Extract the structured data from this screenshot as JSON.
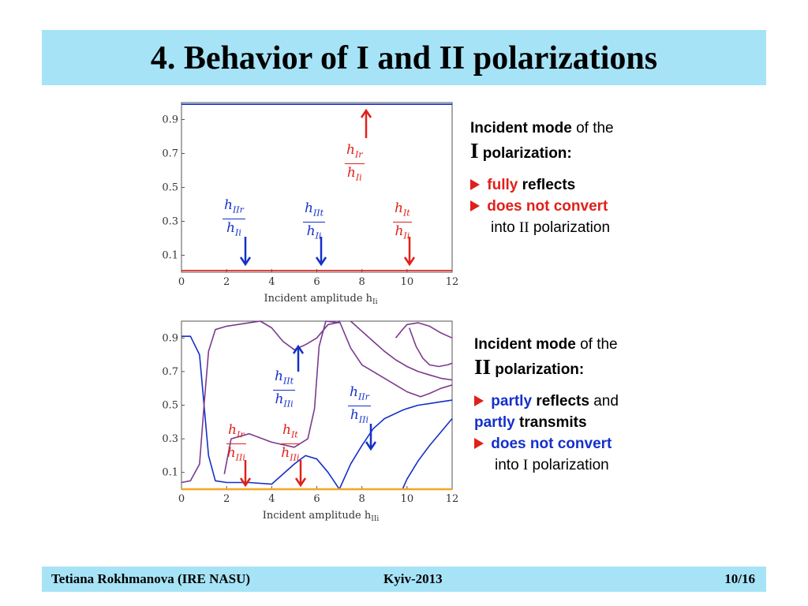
{
  "title": "4. Behavior of I and II polarizations",
  "colors": {
    "header_bg": "#a6e3f7",
    "blue": "#1530c9",
    "red": "#e0201a",
    "purple": "#7b3a8f",
    "orange": "#f5a623"
  },
  "chart_data": [
    {
      "type": "line",
      "xlabel": "Incident amplitude h",
      "xlabel_sub": "Ii",
      "xlim": [
        0,
        12
      ],
      "ylim": [
        0,
        1
      ],
      "xticks": [
        "0",
        "2",
        "4",
        "6",
        "8",
        "10",
        "12"
      ],
      "yticks": [
        "0.1",
        "0.3",
        "0.5",
        "0.7",
        "0.9"
      ],
      "series": [
        {
          "color": "blue",
          "x": [
            0,
            12
          ],
          "y": [
            0.99,
            0.99
          ]
        },
        {
          "color": "red",
          "x": [
            0,
            12
          ],
          "y": [
            0.01,
            0.01
          ]
        }
      ],
      "annotations": [
        {
          "num": "h_{Ir}",
          "den": "h_{Ii}",
          "color": "red",
          "arrow": "up"
        },
        {
          "num": "h_{IIr}",
          "den": "h_{Ii}",
          "color": "blue",
          "arrow": "down"
        },
        {
          "num": "h_{IIt}",
          "den": "h_{Ii}",
          "color": "blue",
          "arrow": "down"
        },
        {
          "num": "h_{It}",
          "den": "h_{Ii}",
          "color": "red",
          "arrow": "down"
        }
      ]
    },
    {
      "type": "line",
      "xlabel": "Incident amplitude h",
      "xlabel_sub": "IIi",
      "xlim": [
        0,
        12
      ],
      "ylim": [
        0,
        1
      ],
      "xticks": [
        "0",
        "2",
        "4",
        "6",
        "8",
        "10",
        "12"
      ],
      "yticks": [
        "0.1",
        "0.3",
        "0.5",
        "0.7",
        "0.9"
      ],
      "series": [
        {
          "color": "blue",
          "x": [
            0,
            0.4,
            0.8,
            1.0,
            1.2,
            1.5,
            2,
            3,
            4,
            5,
            5.5,
            6,
            6.5,
            6.9,
            7.0,
            7.5,
            8,
            8.5,
            9,
            9.8,
            10,
            10.5,
            11,
            11.5,
            12
          ],
          "y": [
            0.91,
            0.91,
            0.8,
            0.5,
            0.2,
            0.05,
            0.04,
            0.04,
            0.03,
            0.15,
            0.2,
            0.18,
            0.1,
            0.02,
            0.0,
            0.15,
            0.26,
            0.36,
            0.42,
            0.47,
            0.48,
            0.5,
            0.51,
            0.52,
            0.53
          ]
        },
        {
          "color": "blue",
          "x": [
            9.8,
            10.0,
            10.5,
            11,
            11.5,
            12
          ],
          "y": [
            0.0,
            0.06,
            0.17,
            0.26,
            0.34,
            0.42
          ]
        },
        {
          "color": "purple",
          "x": [
            0,
            0.4,
            0.8,
            1.0,
            1.2,
            1.5,
            2,
            3,
            3.5,
            4,
            4.5,
            5,
            5.5,
            6,
            6.5,
            6.9,
            7,
            7.5,
            8,
            9,
            10,
            10.6,
            11,
            11.5,
            12
          ],
          "y": [
            0.04,
            0.05,
            0.15,
            0.5,
            0.82,
            0.95,
            0.97,
            0.99,
            1.0,
            0.96,
            0.88,
            0.83,
            0.86,
            0.9,
            0.98,
            0.99,
            1.0,
            0.84,
            0.74,
            0.66,
            0.58,
            0.55,
            0.57,
            0.6,
            0.62
          ]
        },
        {
          "color": "purple",
          "x": [
            1.9,
            2.2,
            3.0,
            4.0,
            5.0,
            5.6,
            5.9,
            6.1,
            6.4,
            7.0
          ],
          "y": [
            0.09,
            0.3,
            0.33,
            0.28,
            0.25,
            0.3,
            0.48,
            0.85,
            1.0,
            0.99
          ]
        },
        {
          "color": "purple",
          "x": [
            7.5,
            8.0,
            8.5,
            9.0,
            9.5,
            10.0,
            10.5,
            11.0,
            11.5,
            12.0
          ],
          "y": [
            1.0,
            0.94,
            0.88,
            0.82,
            0.77,
            0.73,
            0.7,
            0.68,
            0.66,
            0.65
          ]
        },
        {
          "color": "purple",
          "x": [
            9.5,
            9.8,
            10.0,
            10.5,
            11.0,
            11.5,
            12.0
          ],
          "y": [
            0.9,
            0.95,
            0.98,
            0.99,
            0.97,
            0.93,
            0.9
          ]
        },
        {
          "color": "purple",
          "x": [
            10.1,
            10.4,
            10.7,
            11.0,
            11.4,
            11.8,
            12.0
          ],
          "y": [
            0.96,
            0.85,
            0.78,
            0.74,
            0.73,
            0.74,
            0.75
          ]
        },
        {
          "color": "orange",
          "x": [
            0,
            12
          ],
          "y": [
            0.0,
            0.0
          ]
        }
      ],
      "annotations": [
        {
          "num": "h_{IIt}",
          "den": "h_{IIi}",
          "color": "blue",
          "arrow": "up"
        },
        {
          "num": "h_{IIr}",
          "den": "h_{IIi}",
          "color": "blue",
          "arrow": "down"
        },
        {
          "num": "h_{Ir}",
          "den": "h_{IIi}",
          "color": "red",
          "arrow": "down"
        },
        {
          "num": "h_{It}",
          "den": "h_{IIi}",
          "color": "red",
          "arrow": "down"
        }
      ]
    }
  ],
  "panel1": {
    "heading_bold": "Incident mode",
    "heading_rest": "of the",
    "pol": "I",
    "pol_label": "polarization:",
    "b1_red": "fully",
    "b1_rest": "reflects",
    "b2_red": "does not convert",
    "into": "into",
    "into_pol": "II",
    "into_rest": "polarization"
  },
  "panel2": {
    "heading_bold": "Incident mode",
    "heading_rest": "of the",
    "pol": "II",
    "pol_label": "polarization:",
    "b1_blue": "partly",
    "b1_rest": "reflects",
    "b1_and": "and",
    "b2_blue": "partly",
    "b2_rest": "transmits",
    "b3_blue": "does not convert",
    "into": "into",
    "into_pol": "I",
    "into_rest": "polarization"
  },
  "footer": {
    "author": "Tetiana Rokhmanova (IRE NASU)",
    "place": "Kyiv-2013",
    "page": "10/16"
  }
}
